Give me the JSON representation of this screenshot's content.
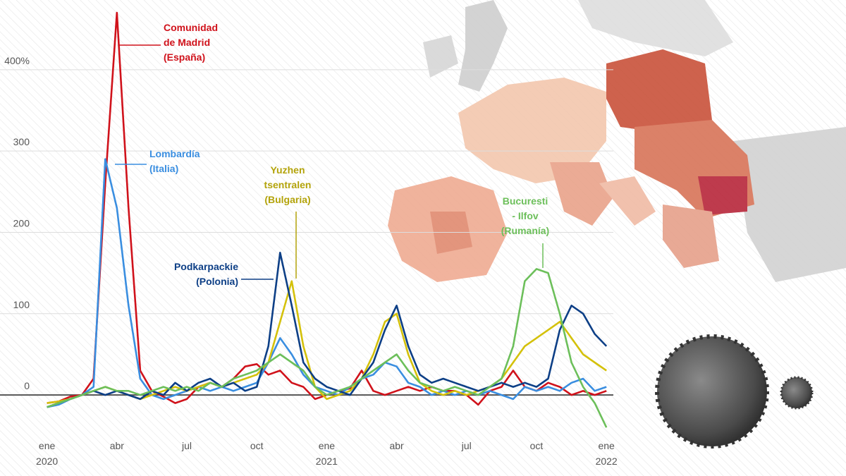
{
  "chart_data": {
    "type": "line",
    "x": [
      0,
      0.5,
      1,
      1.5,
      2,
      2.5,
      3,
      3.5,
      4,
      4.5,
      5,
      5.5,
      6,
      6.5,
      7,
      7.5,
      8,
      8.5,
      9,
      9.5,
      10,
      10.5,
      11,
      11.5,
      12,
      12.5,
      13,
      13.5,
      14,
      14.5,
      15,
      15.5,
      16,
      16.5,
      17,
      17.5,
      18,
      18.5,
      19,
      19.5,
      20,
      20.5,
      21,
      21.5,
      22,
      22.5,
      23,
      23.5,
      24
    ],
    "series": [
      {
        "color": "#d0121b",
        "values": [
          -10,
          -8,
          -2,
          0,
          20,
          260,
          470,
          230,
          30,
          5,
          -2,
          -10,
          -5,
          10,
          15,
          10,
          20,
          35,
          38,
          25,
          30,
          15,
          10,
          -5,
          0,
          5,
          8,
          30,
          5,
          0,
          5,
          10,
          5,
          10,
          5,
          5,
          0,
          -12,
          5,
          10,
          30,
          10,
          5,
          15,
          10,
          0,
          5,
          0,
          5
        ]
      },
      {
        "color": "#3a8ee0",
        "values": [
          -15,
          -12,
          -5,
          0,
          10,
          290,
          230,
          110,
          20,
          0,
          -5,
          0,
          5,
          10,
          5,
          10,
          5,
          10,
          15,
          40,
          70,
          50,
          25,
          10,
          5,
          0,
          10,
          20,
          25,
          40,
          35,
          15,
          10,
          0,
          5,
          0,
          5,
          0,
          5,
          0,
          -5,
          10,
          5,
          10,
          5,
          15,
          20,
          5,
          10
        ]
      },
      {
        "color": "#d4c10a",
        "values": [
          -10,
          -8,
          -5,
          0,
          5,
          10,
          5,
          0,
          -5,
          0,
          5,
          10,
          5,
          10,
          15,
          10,
          15,
          20,
          25,
          40,
          90,
          140,
          60,
          10,
          -5,
          0,
          5,
          20,
          50,
          90,
          100,
          50,
          15,
          5,
          0,
          5,
          0,
          5,
          10,
          20,
          40,
          60,
          70,
          80,
          90,
          70,
          50,
          40,
          30
        ]
      },
      {
        "color": "#0d3f86",
        "values": [
          -15,
          -10,
          -5,
          0,
          5,
          0,
          5,
          0,
          -5,
          5,
          0,
          15,
          5,
          15,
          20,
          10,
          15,
          5,
          10,
          60,
          175,
          110,
          40,
          20,
          10,
          5,
          0,
          20,
          40,
          80,
          110,
          60,
          25,
          15,
          20,
          15,
          10,
          5,
          10,
          15,
          10,
          15,
          10,
          20,
          80,
          110,
          100,
          75,
          60
        ]
      },
      {
        "color": "#6cbf5a",
        "values": [
          -15,
          -10,
          -5,
          0,
          5,
          10,
          5,
          5,
          0,
          5,
          10,
          5,
          10,
          5,
          15,
          10,
          20,
          25,
          30,
          40,
          50,
          40,
          30,
          10,
          0,
          5,
          10,
          20,
          30,
          40,
          50,
          30,
          15,
          10,
          5,
          10,
          5,
          0,
          10,
          20,
          60,
          140,
          155,
          150,
          100,
          40,
          10,
          -10,
          -40
        ]
      }
    ],
    "annotations": [
      {
        "lines": [
          "Comunidad",
          "de Madrid",
          "(España)"
        ]
      },
      {
        "lines": [
          "Lombardía",
          "(Italia)"
        ]
      },
      {
        "lines": [
          "Yuzhen",
          "tsentralen",
          "(Bulgaria)"
        ]
      },
      {
        "lines": [
          "Podkarpackie",
          "(Polonia)"
        ]
      },
      {
        "lines": [
          "Bucuresti",
          "- Ilfov",
          "(Rumanía)"
        ]
      }
    ],
    "xlim": [
      -0.2,
      24.6
    ],
    "xticks": [
      {
        "value": 0,
        "label": [
          "ene",
          "2020"
        ]
      },
      {
        "value": 3,
        "label": [
          "abr"
        ]
      },
      {
        "value": 6,
        "label": [
          "jul"
        ]
      },
      {
        "value": 9,
        "label": [
          "oct"
        ]
      },
      {
        "value": 12,
        "label": [
          "ene",
          "2021"
        ]
      },
      {
        "value": 15,
        "label": [
          "abr"
        ]
      },
      {
        "value": 18,
        "label": [
          "jul"
        ]
      },
      {
        "value": 21,
        "label": [
          "oct"
        ]
      },
      {
        "value": 24,
        "label": [
          "ene",
          "2022"
        ]
      }
    ],
    "ylim": [
      -45,
      480
    ],
    "yticks": [
      0,
      100,
      200,
      300,
      {
        "value": 400,
        "label": "400%"
      }
    ],
    "grid": true
  }
}
